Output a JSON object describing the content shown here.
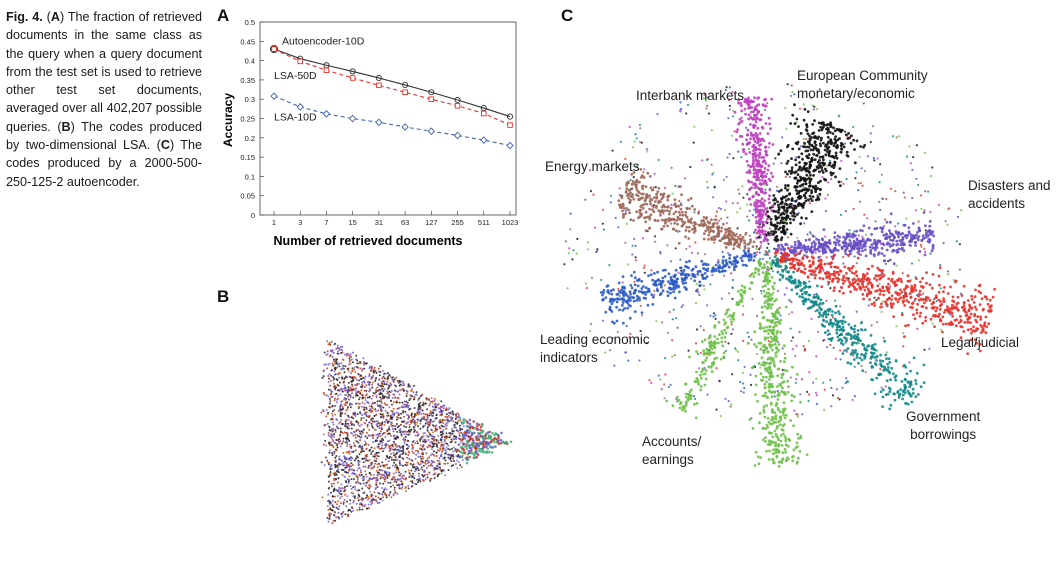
{
  "caption": {
    "fig_label": "Fig. 4.",
    "parts": [
      {
        "t": "(",
        "b": false
      },
      {
        "t": "A",
        "b": true
      },
      {
        "t": ") The fraction of retrieved documents in the same class as the query when a query document from the test set is used to retrieve other test set documents, averaged over all 402,207 possible queries. (",
        "b": false
      },
      {
        "t": "B",
        "b": true
      },
      {
        "t": ") The codes produced by two-dimensional LSA. (",
        "b": false
      },
      {
        "t": "C",
        "b": true
      },
      {
        "t": ") The codes produced by a 2000-500-250-125-2 autoencoder.",
        "b": false
      }
    ]
  },
  "panels": {
    "a": "A",
    "b": "B",
    "c": "C"
  },
  "chart_data": [
    {
      "type": "line",
      "panel": "A",
      "x": [
        "1",
        "3",
        "7",
        "15",
        "31",
        "63",
        "127",
        "255",
        "511",
        "1023"
      ],
      "xlabel": "Number of retrieved documents",
      "ylabel": "Accuracy",
      "ylim": [
        0,
        0.5
      ],
      "yticks": [
        "0",
        "0.05",
        "0.1",
        "0.15",
        "0.2",
        "0.25",
        "0.3",
        "0.35",
        "0.4",
        "0.45",
        "0.5"
      ],
      "grid": false,
      "series": [
        {
          "name": "Autoencoder-10D",
          "values": [
            0.43,
            0.405,
            0.388,
            0.372,
            0.355,
            0.337,
            0.318,
            0.298,
            0.277,
            0.255
          ],
          "color": "#333333",
          "marker": "circle",
          "dash": false
        },
        {
          "name": "LSA-50D",
          "values": [
            0.43,
            0.398,
            0.375,
            0.355,
            0.336,
            0.318,
            0.3,
            0.283,
            0.263,
            0.233
          ],
          "color": "#e8322b",
          "marker": "square",
          "dash": true
        },
        {
          "name": "LSA-10D",
          "values": [
            0.308,
            0.28,
            0.262,
            0.25,
            0.24,
            0.228,
            0.217,
            0.206,
            0.194,
            0.18
          ],
          "color": "#3f63b5",
          "marker": "diamond",
          "dash": true
        }
      ]
    },
    {
      "type": "scatter",
      "panel": "B",
      "note_colors": [
        "#222222",
        "#c0392b",
        "#6a5acd",
        "#3cb371",
        "#7b68ee",
        "#d35400"
      ]
    },
    {
      "type": "scatter",
      "panel": "C",
      "clusters": [
        {
          "name": "European Community monetary/economic",
          "color": "#111111"
        },
        {
          "name": "Interbank markets",
          "color": "#c040c0"
        },
        {
          "name": "Energy markets",
          "color": "#a0685a"
        },
        {
          "name": "Disasters and accidents",
          "color": "#6a4fc8"
        },
        {
          "name": "Legal/judicial",
          "color": "#e8322b"
        },
        {
          "name": "Government borrowings",
          "color": "#138a8a"
        },
        {
          "name": "Accounts/earnings",
          "color": "#6fc24a"
        },
        {
          "name": "Leading economic indicators",
          "color": "#2e5cc8"
        }
      ]
    }
  ],
  "cluster_labels": {
    "european_line1": "European Community",
    "european_line2": "monetary/economic",
    "interbank": "Interbank markets",
    "energy": "Energy markets",
    "disasters_line1": "Disasters and",
    "disasters_line2": "accidents",
    "legal": "Legal/judicial",
    "government_line1": "Government",
    "government_line2": "borrowings",
    "accounts_line1": "Accounts/",
    "accounts_line2": "earnings",
    "leading_line1": "Leading economic",
    "leading_line2": "indicators"
  }
}
